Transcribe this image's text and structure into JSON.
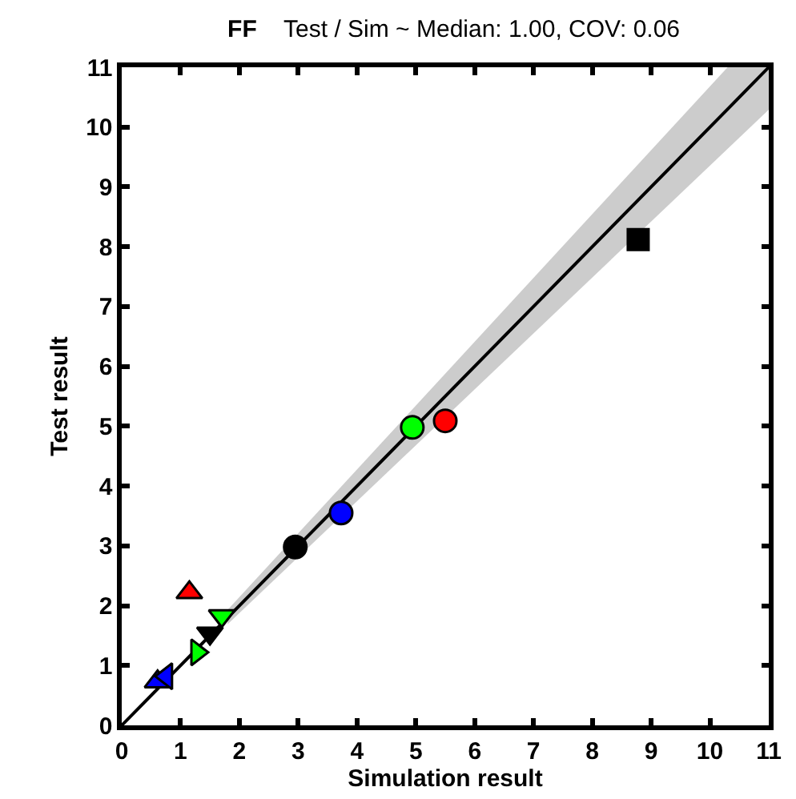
{
  "chart_data": {
    "type": "scatter",
    "title": "FF",
    "subtitle": "Test / Sim ~ Median: 1.00, COV: 0.06",
    "xlabel": "Simulation result",
    "ylabel": "Test result",
    "series": [
      {
        "type": "line",
        "x": [
          0,
          1.8,
          10.3,
          11
        ],
        "values": [
          0,
          1.8,
          10.3,
          11
        ],
        "lower": [
          null,
          1.69,
          9.63,
          10.29
        ],
        "upper": [
          null,
          1.93,
          11,
          11
        ],
        "color": "#000000",
        "marker": "none",
        "line_style": "solid"
      },
      {
        "x": [
          2.95,
          3.73,
          4.94,
          5.5
        ],
        "values": [
          2.98,
          3.55,
          4.98,
          5.09
        ],
        "colors": [
          "#000000",
          "#0000ff",
          "#00ff00",
          "#ff0000"
        ],
        "marker": "circle"
      },
      {
        "x": [
          8.78
        ],
        "values": [
          8.12
        ],
        "colors": [
          "#000000"
        ],
        "marker": "square"
      },
      {
        "x": [
          1.15,
          0.61
        ],
        "values": [
          2.22,
          0.73
        ],
        "colors": [
          "#ff0000",
          "#0000ff"
        ],
        "marker": "triangle-up"
      },
      {
        "x": [
          1.7,
          1.5
        ],
        "values": [
          1.83,
          1.54
        ],
        "colors": [
          "#00ff00",
          "#000000"
        ],
        "marker": "triangle-down"
      },
      {
        "x": [
          1.28
        ],
        "values": [
          1.22
        ],
        "colors": [
          "#00ff00"
        ],
        "marker": "triangle-right"
      },
      {
        "x": [
          0.76
        ],
        "values": [
          0.82
        ],
        "colors": [
          "#0000ff"
        ],
        "marker": "triangle-left"
      }
    ],
    "xlim": [
      0,
      11
    ],
    "ylim": [
      0,
      11
    ],
    "xticks": [
      0,
      1,
      2,
      3,
      4,
      5,
      6,
      7,
      8,
      9,
      10,
      11
    ],
    "yticks": [
      0,
      1,
      2,
      3,
      4,
      5,
      6,
      7,
      8,
      9,
      10,
      11
    ]
  }
}
